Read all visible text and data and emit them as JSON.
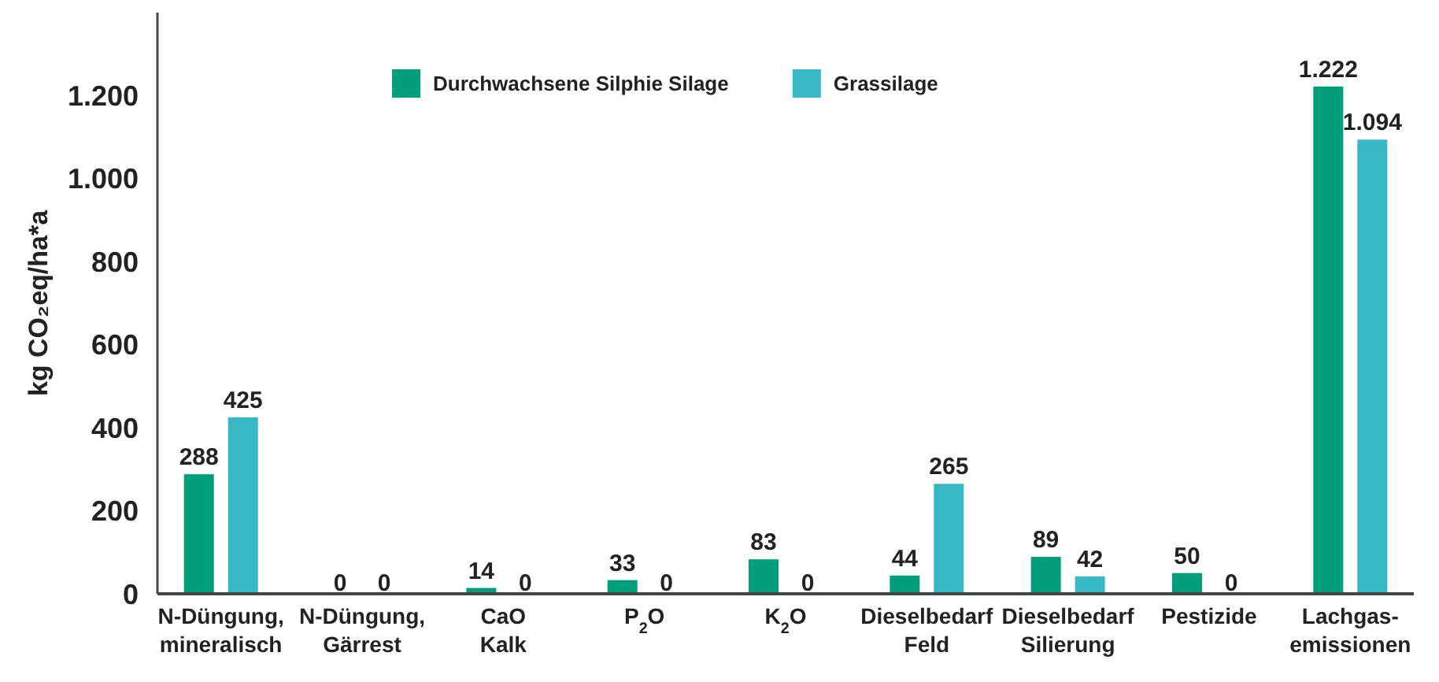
{
  "chart_data": {
    "type": "bar",
    "ylabel": "kg CO₂eq/ha*a",
    "categories": [
      "N-Düngung,\nmineralisch",
      "N-Düngung,\nGärrest",
      "CaO\nKalk",
      "P$_{2}$O",
      "K$_{2}$O",
      "Dieselbedarf\nFeld",
      "Dieselbedarf\nSilierung",
      "Pestizide",
      "Lachgas-\nemissionen"
    ],
    "series": [
      {
        "name": "Durchwachsene Silphie Silage",
        "color": "#009e7b",
        "values": [
          288,
          0,
          14,
          33,
          83,
          44,
          89,
          50,
          1222
        ],
        "value_labels": [
          "288",
          "0",
          "14",
          "33",
          "83",
          "44",
          "89",
          "50",
          "1.222"
        ]
      },
      {
        "name": "Grassilage",
        "color": "#38b8c4",
        "values": [
          425,
          0,
          0,
          0,
          0,
          265,
          42,
          0,
          1094
        ],
        "value_labels": [
          "425",
          "0",
          "0",
          "0",
          "0",
          "265",
          "42",
          "0",
          "1.094"
        ]
      }
    ],
    "ylim": [
      0,
      1400
    ],
    "yticks": [
      0,
      200,
      400,
      600,
      800,
      {
        "value": 1000,
        "label": "1.000"
      },
      {
        "value": 1200,
        "label": "1.200"
      }
    ],
    "legend": "top",
    "grid": false
  }
}
